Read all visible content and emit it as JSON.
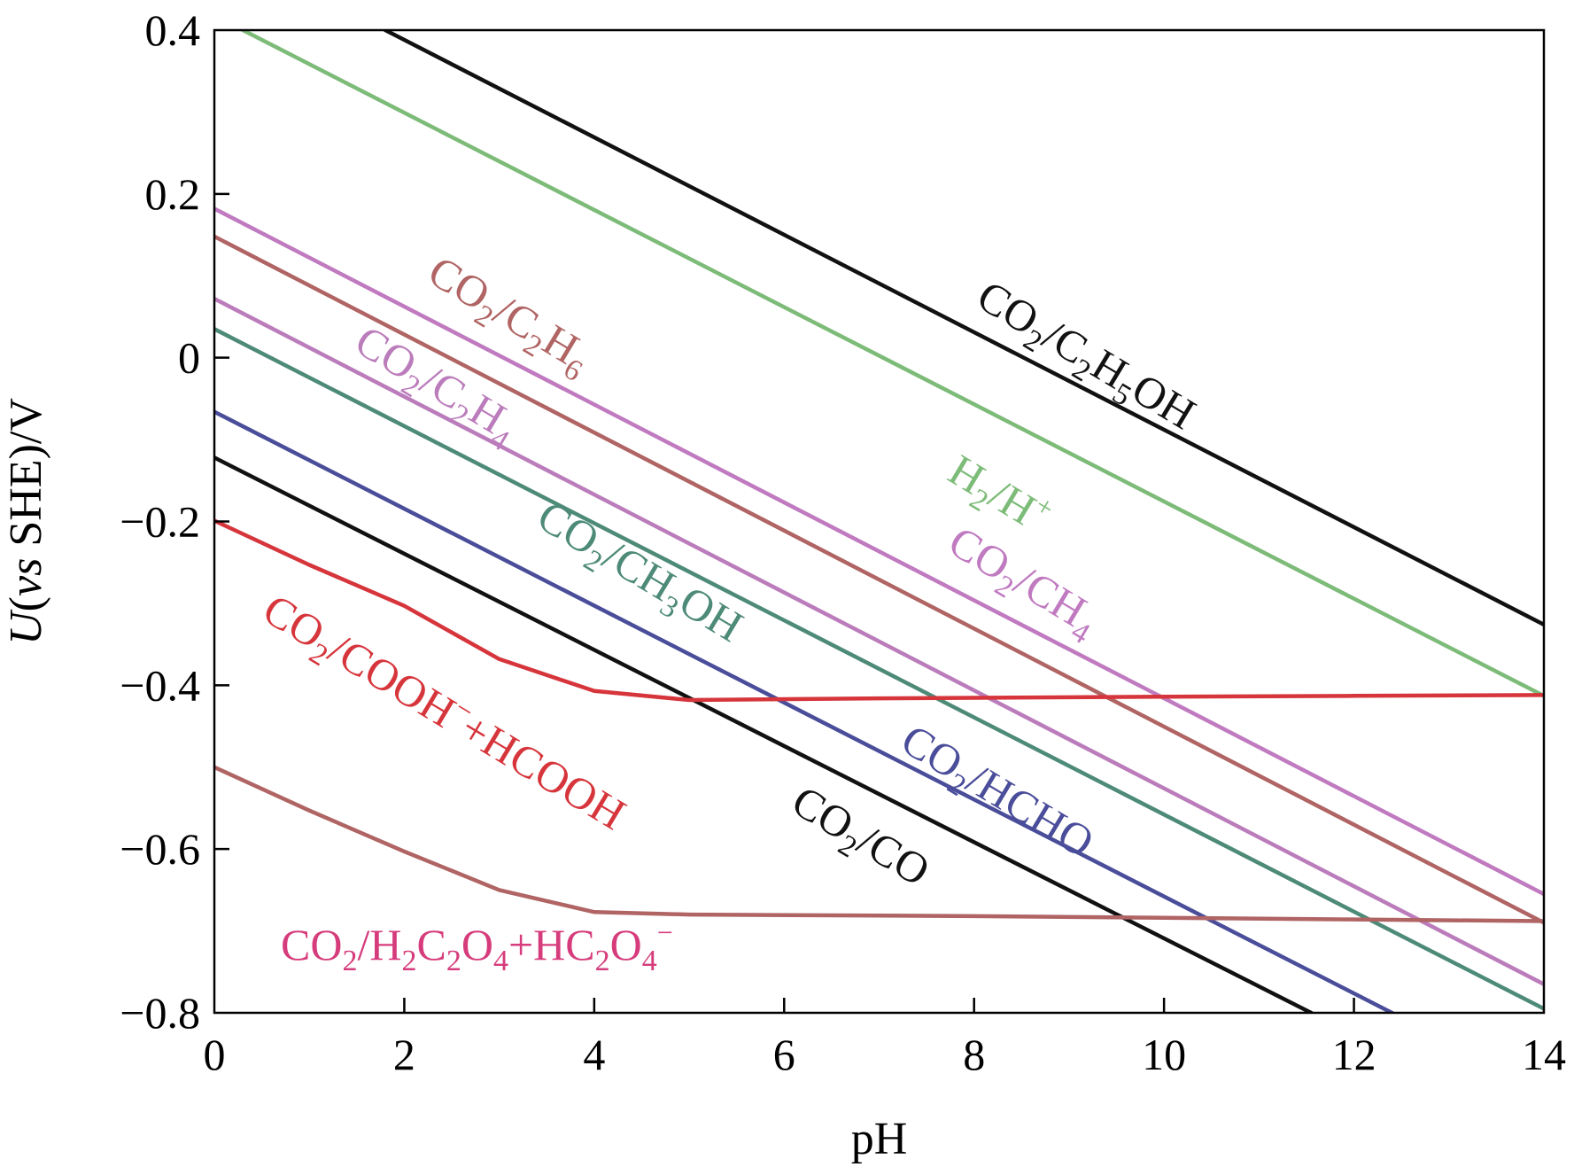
{
  "chart_data": {
    "type": "line",
    "xlabel": "pH",
    "ylabel_parts": [
      "U",
      "(",
      "vs",
      " SHE)/V"
    ],
    "xlim": [
      0,
      14
    ],
    "ylim": [
      -0.8,
      0.4
    ],
    "xticks": [
      0,
      2,
      4,
      6,
      8,
      10,
      12,
      14
    ],
    "xtick_labels": [
      "0",
      "2",
      "4",
      "6",
      "8",
      "10",
      "12",
      "14"
    ],
    "yticks": [
      0.4,
      0.2,
      0,
      -0.2,
      -0.4,
      -0.6,
      -0.8
    ],
    "ytick_labels": [
      "0.4",
      "0.2",
      "0",
      "−0.2",
      "−0.4",
      "−0.6",
      "−0.8"
    ],
    "grid": false,
    "series": [
      {
        "name": "CO2/C2H5OH",
        "color": "#111111",
        "points": [
          [
            1.8,
            0.4
          ],
          [
            14,
            -0.326
          ]
        ],
        "label_parts": [
          [
            "CO",
            ""
          ],
          [
            "2",
            "sub"
          ],
          [
            "/C",
            ""
          ],
          [
            "2",
            "sub"
          ],
          [
            "H",
            ""
          ],
          [
            "5",
            "sub"
          ],
          [
            "OH",
            ""
          ]
        ],
        "label_at": [
          8.0,
          0.065
        ],
        "label_angle": 31
      },
      {
        "name": "H2/H+",
        "color": "#7dbb78",
        "points": [
          [
            0.3,
            0.4
          ],
          [
            14,
            -0.413
          ]
        ],
        "label_parts": [
          [
            "H",
            ""
          ],
          [
            "2",
            "sub"
          ],
          [
            "/H",
            ""
          ],
          [
            "+",
            "sup"
          ]
        ],
        "label_at": [
          7.7,
          -0.148
        ],
        "label_angle": 31
      },
      {
        "name": "CO2/CH4",
        "color": "#c07ac0",
        "points": [
          [
            0,
            0.182
          ],
          [
            14,
            -0.655
          ]
        ],
        "label_parts": [
          [
            "CO",
            ""
          ],
          [
            "2",
            "sub"
          ],
          [
            "/CH",
            ""
          ],
          [
            "4",
            "sub"
          ]
        ],
        "label_at": [
          7.7,
          -0.235
        ],
        "label_angle": 31
      },
      {
        "name": "CO2/C2H6",
        "color": "#b06464",
        "points": [
          [
            0,
            0.148
          ],
          [
            14,
            -0.69
          ]
        ],
        "label_parts": [
          [
            "CO",
            ""
          ],
          [
            "2",
            "sub"
          ],
          [
            "/C",
            ""
          ],
          [
            "2",
            "sub"
          ],
          [
            "H",
            ""
          ],
          [
            "6",
            "sub"
          ]
        ],
        "label_at": [
          2.22,
          0.095
        ],
        "label_angle": 31
      },
      {
        "name": "CO2/C2H4",
        "color": "#bb7cbb",
        "points": [
          [
            0,
            0.072
          ],
          [
            14,
            -0.765
          ]
        ],
        "label_parts": [
          [
            "CO",
            ""
          ],
          [
            "2",
            "sub"
          ],
          [
            "/C",
            ""
          ],
          [
            "2",
            "sub"
          ],
          [
            "H",
            ""
          ],
          [
            "4",
            "sub"
          ]
        ],
        "label_at": [
          1.45,
          0.01
        ],
        "label_angle": 31
      },
      {
        "name": "CO2/CH3OH",
        "color": "#4d8a78",
        "points": [
          [
            0,
            0.035
          ],
          [
            14,
            -0.795
          ]
        ],
        "label_parts": [
          [
            "CO",
            ""
          ],
          [
            "2",
            "sub"
          ],
          [
            "/CH",
            ""
          ],
          [
            "3",
            "sub"
          ],
          [
            "OH",
            ""
          ]
        ],
        "label_at": [
          3.37,
          -0.204
        ],
        "label_angle": 31
      },
      {
        "name": "CO2/HCHO",
        "color": "#4a4d99",
        "points": [
          [
            0,
            -0.066
          ],
          [
            12.4,
            -0.8
          ]
        ],
        "label_parts": [
          [
            "CO",
            ""
          ],
          [
            "2",
            "sub"
          ],
          [
            "/HCHO",
            ""
          ]
        ],
        "label_at": [
          7.2,
          -0.477
        ],
        "label_angle": 31
      },
      {
        "name": "CO2/CO",
        "color": "#111111",
        "points": [
          [
            0,
            -0.122
          ],
          [
            11.55,
            -0.8
          ]
        ],
        "label_parts": [
          [
            "CO",
            ""
          ],
          [
            "2",
            "sub"
          ],
          [
            "/CO",
            ""
          ]
        ],
        "label_at": [
          6.05,
          -0.552
        ],
        "label_angle": 31
      },
      {
        "name": "CO2/COOH−+HCOOH",
        "color": "#d6353b",
        "points": [
          [
            0,
            -0.199
          ],
          [
            1,
            -0.253
          ],
          [
            2,
            -0.303
          ],
          [
            3,
            -0.368
          ],
          [
            4,
            -0.407
          ],
          [
            5,
            -0.418
          ],
          [
            7,
            -0.416
          ],
          [
            10,
            -0.414
          ],
          [
            12,
            -0.413
          ],
          [
            14,
            -0.412
          ]
        ],
        "label_parts": [
          [
            "CO",
            ""
          ],
          [
            "2",
            "sub"
          ],
          [
            "/COOH",
            ""
          ],
          [
            "−",
            "sup"
          ],
          [
            "+HCOOH",
            ""
          ]
        ],
        "label_at": [
          0.48,
          -0.318
        ],
        "label_angle": 31
      },
      {
        "name": "CO2/H2C2O4+HC2O4−",
        "color": "#b06464",
        "points": [
          [
            0,
            -0.5
          ],
          [
            1,
            -0.553
          ],
          [
            2,
            -0.603
          ],
          [
            3,
            -0.65
          ],
          [
            4,
            -0.677
          ],
          [
            5,
            -0.68
          ],
          [
            8,
            -0.682
          ],
          [
            10,
            -0.684
          ],
          [
            12,
            -0.686
          ],
          [
            14,
            -0.688
          ]
        ],
        "label_parts": [
          [
            "CO",
            ""
          ],
          [
            "2",
            "sub"
          ],
          [
            "/H",
            ""
          ],
          [
            "2",
            "sub"
          ],
          [
            "C",
            ""
          ],
          [
            "2",
            "sub"
          ],
          [
            "O",
            ""
          ],
          [
            "4",
            "sub"
          ],
          [
            "+HC",
            ""
          ],
          [
            "2",
            "sub"
          ],
          [
            "O",
            ""
          ],
          [
            "4",
            "sub"
          ],
          [
            "−",
            "sup"
          ]
        ],
        "label_color": "#d63c7c",
        "label_at": [
          0.7,
          -0.735
        ],
        "label_angle": 0
      }
    ]
  }
}
